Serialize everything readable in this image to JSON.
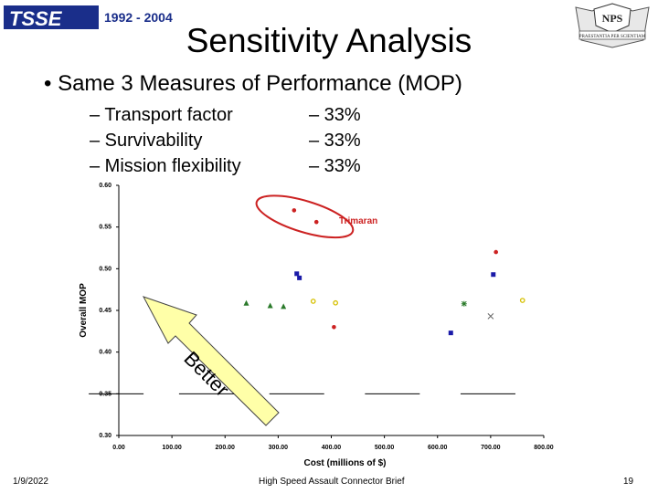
{
  "header": {
    "logo_text": "TSSE",
    "logo_years": "1992 - 2004",
    "nps_logo_text": "NPS",
    "nps_logo_banner": "PRAESTANTIA PER SCIENTIAM",
    "title": "Sensitivity Analysis"
  },
  "content": {
    "bullet": "• Same 3 Measures of Performance (MOP)",
    "sub_items": [
      {
        "label": "– Transport factor",
        "weight": "– 33%"
      },
      {
        "label": "– Survivability",
        "weight": "– 33%"
      },
      {
        "label": "– Mission flexibility",
        "weight": "– 33%"
      }
    ]
  },
  "chart_data": {
    "type": "scatter",
    "xlabel": "Cost (millions of $)",
    "ylabel": "Overall MOP",
    "xlim": [
      0,
      800
    ],
    "ylim": [
      0.3,
      0.6
    ],
    "x_ticks": [
      "0.00",
      "100.00",
      "200.00",
      "300.00",
      "400.00",
      "500.00",
      "600.00",
      "700.00",
      "800.00"
    ],
    "y_ticks": [
      "0.30",
      "0.35",
      "0.40",
      "0.45",
      "0.50",
      "0.55",
      "0.60"
    ],
    "annotation": "Trimaran",
    "arrow_label": "Better",
    "series": [
      {
        "marker": "circle",
        "color": "#cc2222",
        "points": [
          [
            330,
            0.57
          ],
          [
            372,
            0.556
          ],
          [
            710,
            0.52
          ],
          [
            405,
            0.43
          ]
        ]
      },
      {
        "marker": "square",
        "color": "#1a1aa8",
        "points": [
          [
            335,
            0.494
          ],
          [
            340,
            0.489
          ],
          [
            705,
            0.493
          ],
          [
            625,
            0.423
          ]
        ]
      },
      {
        "marker": "triangle",
        "color": "#2a7a2a",
        "points": [
          [
            240,
            0.459
          ],
          [
            285,
            0.456
          ],
          [
            310,
            0.455
          ]
        ]
      },
      {
        "marker": "circle-open",
        "color": "#d6c000",
        "points": [
          [
            366,
            0.461
          ],
          [
            408,
            0.459
          ],
          [
            760,
            0.462
          ]
        ]
      },
      {
        "marker": "star",
        "color": "#2a7a2a",
        "points": [
          [
            650,
            0.458
          ]
        ]
      },
      {
        "marker": "x",
        "color": "#666666",
        "points": [
          [
            700,
            0.443
          ]
        ]
      },
      {
        "marker": "bar",
        "color": "#000000",
        "points": [
          [
            -5,
            0.35
          ],
          [
            165,
            0.35
          ],
          [
            335,
            0.35
          ],
          [
            515,
            0.35
          ],
          [
            695,
            0.35
          ]
        ]
      }
    ]
  },
  "footer": {
    "date": "1/9/2022",
    "center": "High Speed Assault Connector Brief",
    "page": "19"
  }
}
